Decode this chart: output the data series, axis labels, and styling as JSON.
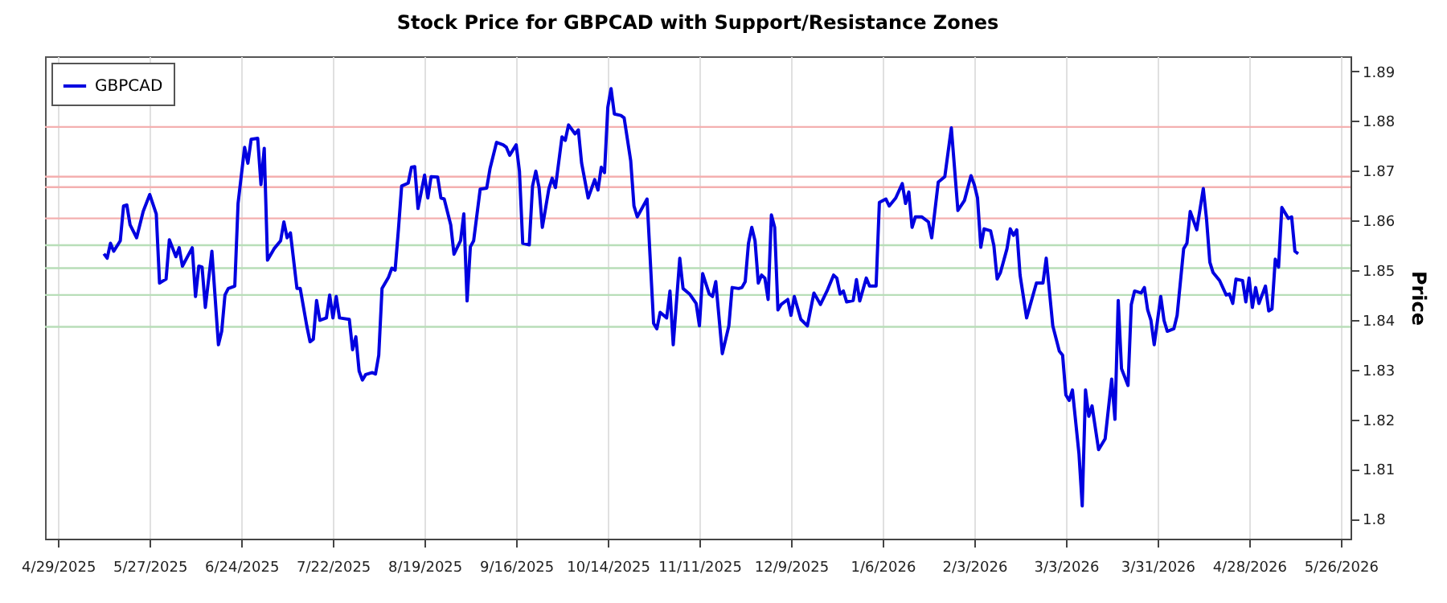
{
  "chart_data": {
    "type": "line",
    "title": "Stock Price for GBPCAD with Support/Resistance Zones",
    "ylabel": "Price",
    "x": [
      "2025-05-13",
      "2025-05-14",
      "2025-05-15",
      "2025-05-16",
      "2025-05-18",
      "2025-05-19",
      "2025-05-20",
      "2025-05-21",
      "2025-05-23",
      "2025-05-25",
      "2025-05-27",
      "2025-05-29",
      "2025-05-30",
      "2025-06-01",
      "2025-06-02",
      "2025-06-04",
      "2025-06-05",
      "2025-06-06",
      "2025-06-09",
      "2025-06-10",
      "2025-06-11",
      "2025-06-12",
      "2025-06-13",
      "2025-06-15",
      "2025-06-17",
      "2025-06-18",
      "2025-06-19",
      "2025-06-20",
      "2025-06-22",
      "2025-06-23",
      "2025-06-25",
      "2025-06-26",
      "2025-06-27",
      "2025-06-29",
      "2025-06-30",
      "2025-07-01",
      "2025-07-02",
      "2025-07-04",
      "2025-07-06",
      "2025-07-07",
      "2025-07-08",
      "2025-07-09",
      "2025-07-11",
      "2025-07-12",
      "2025-07-14",
      "2025-07-15",
      "2025-07-16",
      "2025-07-17",
      "2025-07-18",
      "2025-07-20",
      "2025-07-21",
      "2025-07-22",
      "2025-07-23",
      "2025-07-24",
      "2025-07-27",
      "2025-07-28",
      "2025-07-29",
      "2025-07-30",
      "2025-07-31",
      "2025-08-01",
      "2025-08-03",
      "2025-08-04",
      "2025-08-05",
      "2025-08-06",
      "2025-08-08",
      "2025-08-09",
      "2025-08-10",
      "2025-08-11",
      "2025-08-12",
      "2025-08-14",
      "2025-08-15",
      "2025-08-16",
      "2025-08-17",
      "2025-08-19",
      "2025-08-20",
      "2025-08-21",
      "2025-08-23",
      "2025-08-24",
      "2025-08-25",
      "2025-08-27",
      "2025-08-28",
      "2025-08-30",
      "2025-08-31",
      "2025-09-01",
      "2025-09-02",
      "2025-09-03",
      "2025-09-05",
      "2025-09-07",
      "2025-09-08",
      "2025-09-10",
      "2025-09-12",
      "2025-09-13",
      "2025-09-14",
      "2025-09-16",
      "2025-09-17",
      "2025-09-18",
      "2025-09-20",
      "2025-09-21",
      "2025-09-22",
      "2025-09-23",
      "2025-09-24",
      "2025-09-26",
      "2025-09-27",
      "2025-09-28",
      "2025-09-30",
      "2025-10-01",
      "2025-10-02",
      "2025-10-04",
      "2025-10-05",
      "2025-10-06",
      "2025-10-08",
      "2025-10-10",
      "2025-10-11",
      "2025-10-12",
      "2025-10-13",
      "2025-10-14",
      "2025-10-15",
      "2025-10-16",
      "2025-10-18",
      "2025-10-19",
      "2025-10-21",
      "2025-10-22",
      "2025-10-23",
      "2025-10-26",
      "2025-10-28",
      "2025-10-29",
      "2025-10-30",
      "2025-11-01",
      "2025-11-02",
      "2025-11-03",
      "2025-11-05",
      "2025-11-06",
      "2025-11-08",
      "2025-11-10",
      "2025-11-11",
      "2025-11-12",
      "2025-11-14",
      "2025-11-15",
      "2025-11-16",
      "2025-11-18",
      "2025-11-20",
      "2025-11-21",
      "2025-11-23",
      "2025-11-24",
      "2025-11-25",
      "2025-11-26",
      "2025-11-27",
      "2025-11-28",
      "2025-11-29",
      "2025-11-30",
      "2025-12-01",
      "2025-12-02",
      "2025-12-03",
      "2025-12-04",
      "2025-12-05",
      "2025-12-06",
      "2025-12-08",
      "2025-12-09",
      "2025-12-10",
      "2025-12-12",
      "2025-12-14",
      "2025-12-16",
      "2025-12-18",
      "2025-12-20",
      "2025-12-22",
      "2025-12-23",
      "2025-12-24",
      "2025-12-25",
      "2025-12-26",
      "2025-12-28",
      "2025-12-29",
      "2025-12-30",
      "2026-01-01",
      "2026-01-02",
      "2026-01-04",
      "2026-01-05",
      "2026-01-07",
      "2026-01-08",
      "2026-01-10",
      "2026-01-12",
      "2026-01-13",
      "2026-01-14",
      "2026-01-15",
      "2026-01-16",
      "2026-01-18",
      "2026-01-20",
      "2026-01-21",
      "2026-01-23",
      "2026-01-25",
      "2026-01-27",
      "2026-01-29",
      "2026-01-31",
      "2026-02-02",
      "2026-02-03",
      "2026-02-04",
      "2026-02-05",
      "2026-02-06",
      "2026-02-08",
      "2026-02-09",
      "2026-02-10",
      "2026-02-11",
      "2026-02-13",
      "2026-02-14",
      "2026-02-15",
      "2026-02-16",
      "2026-02-17",
      "2026-02-19",
      "2026-02-22",
      "2026-02-24",
      "2026-02-25",
      "2026-02-27",
      "2026-03-01",
      "2026-03-02",
      "2026-03-03",
      "2026-03-04",
      "2026-03-05",
      "2026-03-07",
      "2026-03-08",
      "2026-03-09",
      "2026-03-10",
      "2026-03-11",
      "2026-03-13",
      "2026-03-15",
      "2026-03-17",
      "2026-03-18",
      "2026-03-19",
      "2026-03-20",
      "2026-03-22",
      "2026-03-23",
      "2026-03-24",
      "2026-03-26",
      "2026-03-27",
      "2026-03-28",
      "2026-03-29",
      "2026-03-30",
      "2026-04-01",
      "2026-04-02",
      "2026-04-03",
      "2026-04-05",
      "2026-04-06",
      "2026-04-08",
      "2026-04-09",
      "2026-04-10",
      "2026-04-12",
      "2026-04-14",
      "2026-04-15",
      "2026-04-16",
      "2026-04-17",
      "2026-04-19",
      "2026-04-21",
      "2026-04-22",
      "2026-04-23",
      "2026-04-24",
      "2026-04-26",
      "2026-04-27",
      "2026-04-28",
      "2026-04-29",
      "2026-04-30",
      "2026-05-01",
      "2026-05-03",
      "2026-05-04",
      "2026-05-05",
      "2026-05-06",
      "2026-05-07",
      "2026-05-08",
      "2026-05-10",
      "2026-05-11",
      "2026-05-12",
      "2026-05-13"
    ],
    "series": [
      {
        "name": "GBPCAD",
        "color": "#0000e0",
        "values": [
          1.8533,
          1.8524,
          1.8554,
          1.8538,
          1.8559,
          1.8629,
          1.8631,
          1.8591,
          1.8565,
          1.8618,
          1.8652,
          1.8613,
          1.8474,
          1.8482,
          1.8561,
          1.8527,
          1.8545,
          1.8508,
          1.8545,
          1.8447,
          1.8508,
          1.8506,
          1.8425,
          1.8538,
          1.835,
          1.8377,
          1.845,
          1.8463,
          1.8468,
          1.8634,
          1.8747,
          1.8715,
          1.8763,
          1.8765,
          1.8672,
          1.8745,
          1.852,
          1.8543,
          1.8559,
          1.8597,
          1.8565,
          1.8575,
          1.8463,
          1.8463,
          1.8388,
          1.8356,
          1.8361,
          1.8439,
          1.8399,
          1.8404,
          1.845,
          1.8404,
          1.8447,
          1.8404,
          1.8401,
          1.834,
          1.8366,
          1.8297,
          1.8279,
          1.829,
          1.8294,
          1.8291,
          1.8329,
          1.8463,
          1.8486,
          1.8504,
          1.85,
          1.8581,
          1.8669,
          1.8675,
          1.8707,
          1.8708,
          1.8624,
          1.8691,
          1.8645,
          1.8688,
          1.8687,
          1.8645,
          1.8643,
          1.8591,
          1.8532,
          1.8559,
          1.8613,
          1.8438,
          1.8547,
          1.8559,
          1.8663,
          1.8665,
          1.8704,
          1.8757,
          1.8752,
          1.8747,
          1.8731,
          1.8752,
          1.8699,
          1.8554,
          1.8551,
          1.8669,
          1.8699,
          1.8666,
          1.8586,
          1.8664,
          1.8685,
          1.8666,
          1.8768,
          1.8761,
          1.8792,
          1.8774,
          1.8782,
          1.8715,
          1.8645,
          1.8682,
          1.8661,
          1.8707,
          1.8696,
          1.8827,
          1.8865,
          1.8814,
          1.8811,
          1.8806,
          1.872,
          1.8629,
          1.8607,
          1.8643,
          1.8393,
          1.8382,
          1.8415,
          1.8404,
          1.8458,
          1.835,
          1.8524,
          1.8463,
          1.8452,
          1.8433,
          1.8388,
          1.8493,
          1.8452,
          1.8447,
          1.8477,
          1.8332,
          1.8388,
          1.8465,
          1.8463,
          1.8465,
          1.8477,
          1.8554,
          1.8586,
          1.8559,
          1.8474,
          1.849,
          1.8484,
          1.8441,
          1.8611,
          1.8586,
          1.842,
          1.8431,
          1.8441,
          1.8409,
          1.8447,
          1.8401,
          1.8388,
          1.8454,
          1.8431,
          1.8458,
          1.849,
          1.8484,
          1.8452,
          1.8458,
          1.8436,
          1.8439,
          1.8481,
          1.8438,
          1.8484,
          1.8468,
          1.8468,
          1.8636,
          1.8643,
          1.8629,
          1.8645,
          1.8674,
          1.8634,
          1.8657,
          1.8586,
          1.8607,
          1.8607,
          1.8597,
          1.8565,
          1.8677,
          1.8688,
          1.8786,
          1.862,
          1.864,
          1.869,
          1.8672,
          1.8645,
          1.8546,
          1.8583,
          1.8579,
          1.8549,
          1.8482,
          1.8495,
          1.8543,
          1.8583,
          1.857,
          1.8581,
          1.849,
          1.8404,
          1.8474,
          1.8474,
          1.8524,
          1.8388,
          1.8337,
          1.8329,
          1.8249,
          1.8238,
          1.8259,
          1.8131,
          1.8026,
          1.8259,
          1.8206,
          1.8227,
          1.8139,
          1.8161,
          1.8281,
          1.82,
          1.8439,
          1.8302,
          1.8268,
          1.8431,
          1.8458,
          1.8454,
          1.8465,
          1.842,
          1.8399,
          1.835,
          1.8447,
          1.8399,
          1.8377,
          1.8382,
          1.8409,
          1.8543,
          1.8554,
          1.8618,
          1.8581,
          1.8664,
          1.8602,
          1.8516,
          1.8495,
          1.8479,
          1.845,
          1.8452,
          1.8433,
          1.8482,
          1.8479,
          1.8436,
          1.8484,
          1.8425,
          1.8465,
          1.8433,
          1.8468,
          1.8418,
          1.8422,
          1.8522,
          1.8506,
          1.8626,
          1.8604,
          1.8607,
          1.8538,
          1.8533
        ]
      }
    ],
    "xlim": [
      "2025-04-25",
      "2026-05-29"
    ],
    "xticks": [
      {
        "value": "2025-04-29",
        "label": "4/29/2025"
      },
      {
        "value": "2025-05-27",
        "label": "5/27/2025"
      },
      {
        "value": "2025-06-24",
        "label": "6/24/2025"
      },
      {
        "value": "2025-07-22",
        "label": "7/22/2025"
      },
      {
        "value": "2025-08-19",
        "label": "8/19/2025"
      },
      {
        "value": "2025-09-16",
        "label": "9/16/2025"
      },
      {
        "value": "2025-10-14",
        "label": "10/14/2025"
      },
      {
        "value": "2025-11-11",
        "label": "11/11/2025"
      },
      {
        "value": "2025-12-09",
        "label": "12/9/2025"
      },
      {
        "value": "2026-01-06",
        "label": "1/6/2026"
      },
      {
        "value": "2026-02-03",
        "label": "2/3/2026"
      },
      {
        "value": "2026-03-03",
        "label": "3/3/2026"
      },
      {
        "value": "2026-03-31",
        "label": "3/31/2026"
      },
      {
        "value": "2026-04-28",
        "label": "4/28/2026"
      },
      {
        "value": "2026-05-26",
        "label": "5/26/2026"
      }
    ],
    "ylim": [
      1.796,
      1.893
    ],
    "yticks": [
      1.8,
      1.81,
      1.82,
      1.83,
      1.84,
      1.85,
      1.86,
      1.87,
      1.88,
      1.89
    ],
    "ref_lines": [
      {
        "axis": "y",
        "value": 1.8788,
        "color": "#f4b0b0"
      },
      {
        "axis": "y",
        "value": 1.8688,
        "color": "#f4b0b0"
      },
      {
        "axis": "y",
        "value": 1.8667,
        "color": "#f4b0b0"
      },
      {
        "axis": "y",
        "value": 1.8604,
        "color": "#f4b0b0"
      },
      {
        "axis": "y",
        "value": 1.855,
        "color": "#b8deb8"
      },
      {
        "axis": "y",
        "value": 1.8504,
        "color": "#b8deb8"
      },
      {
        "axis": "y",
        "value": 1.845,
        "color": "#b8deb8"
      },
      {
        "axis": "y",
        "value": 1.8386,
        "color": "#b8deb8"
      }
    ],
    "grid": "x",
    "legend": "top left",
    "marker": "none",
    "line_style": "solid"
  }
}
